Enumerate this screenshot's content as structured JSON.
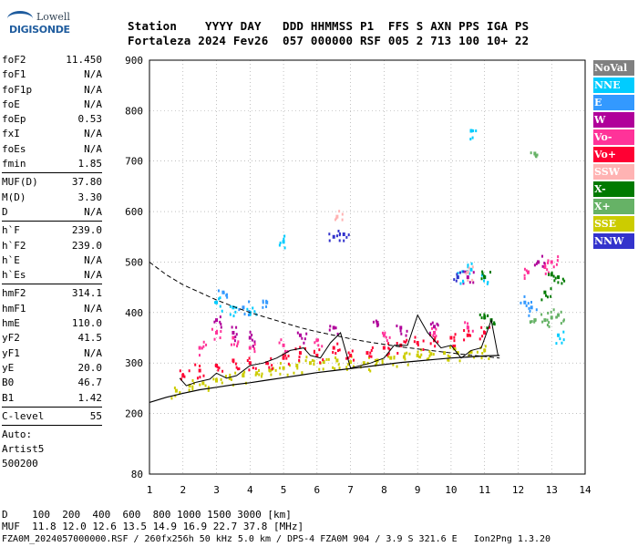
{
  "logo": {
    "line1": "Lowell",
    "line2": "DIGISONDE"
  },
  "header": {
    "line1": "Station    YYYY DAY   DDD HHMMSS P1  FFS S AXN PPS IGA PS",
    "line2": "Fortaleza 2024 Fev26  057 000000 RSF 005 2 713 100 10+ 22"
  },
  "params_group1": [
    {
      "label": "foF2",
      "value": "11.450"
    },
    {
      "label": "foF1",
      "value": "N/A"
    },
    {
      "label": "foF1p",
      "value": "N/A"
    },
    {
      "label": "foE",
      "value": "N/A"
    },
    {
      "label": "foEp",
      "value": "0.53"
    },
    {
      "label": "fxI",
      "value": "N/A"
    },
    {
      "label": "foEs",
      "value": "N/A"
    },
    {
      "label": "fmin",
      "value": "1.85"
    }
  ],
  "params_group2": [
    {
      "label": "MUF(D)",
      "value": "37.80"
    },
    {
      "label": "M(D)",
      "value": "3.30"
    },
    {
      "label": "D",
      "value": "N/A"
    }
  ],
  "params_group3": [
    {
      "label": "h`F",
      "value": "239.0"
    },
    {
      "label": "h`F2",
      "value": "239.0"
    },
    {
      "label": "h`E",
      "value": "N/A"
    },
    {
      "label": "h`Es",
      "value": "N/A"
    }
  ],
  "params_group4": [
    {
      "label": "hmF2",
      "value": "314.1"
    },
    {
      "label": "hmF1",
      "value": "N/A"
    },
    {
      "label": "hmE",
      "value": "110.0"
    },
    {
      "label": "yF2",
      "value": "41.5"
    },
    {
      "label": "yF1",
      "value": "N/A"
    },
    {
      "label": "yE",
      "value": "20.0"
    },
    {
      "label": "B0",
      "value": "46.7"
    },
    {
      "label": "B1",
      "value": "1.42"
    }
  ],
  "params_group5": [
    {
      "label": "C-level",
      "value": "55"
    }
  ],
  "auto": [
    "Auto:",
    "Artist5",
    "500200"
  ],
  "legend": [
    {
      "label": "NoVal",
      "color": "#808080"
    },
    {
      "label": "NNE",
      "color": "#00ccff"
    },
    {
      "label": "E",
      "color": "#3399ff"
    },
    {
      "label": "W",
      "color": "#b0009a"
    },
    {
      "label": "Vo-",
      "color": "#ff3399"
    },
    {
      "label": "Vo+",
      "color": "#ff0033"
    },
    {
      "label": "SSW",
      "color": "#ffb3b3"
    },
    {
      "label": "X-",
      "color": "#007a00"
    },
    {
      "label": "X+",
      "color": "#66b266"
    },
    {
      "label": "SSE",
      "color": "#cccc00"
    },
    {
      "label": "NNW",
      "color": "#3333cc"
    }
  ],
  "footer": {
    "line1": "D    100  200  400  600  800 1000 1500 3000 [km]",
    "line2": "MUF  11.8 12.0 12.6 13.5 14.9 16.9 22.7 37.8 [MHz]",
    "line3": "FZA0M_2024057000000.RSF / 260fx256h 50 kHz 5.0 km / DPS-4 FZA0M 904 / 3.9 S 321.6 E   Ion2Png 1.3.20"
  },
  "chart_data": {
    "type": "scatter",
    "title": "",
    "xlabel": "",
    "ylabel": "",
    "xlim": [
      1,
      14
    ],
    "ylim": [
      80,
      900
    ],
    "x_ticks": [
      1,
      2,
      3,
      4,
      5,
      6,
      7,
      8,
      9,
      10,
      11,
      12,
      13,
      14
    ],
    "y_ticks": [
      80,
      200,
      300,
      400,
      500,
      600,
      700,
      800,
      900
    ],
    "grid": "dotted",
    "legend_position": "right",
    "echo_traces": [
      {
        "series": "SSE",
        "points": [
          [
            1.8,
            245
          ],
          [
            2.2,
            255
          ],
          [
            2.6,
            260
          ],
          [
            3.0,
            265
          ],
          [
            3.4,
            270
          ],
          [
            3.8,
            275
          ],
          [
            4.2,
            280
          ],
          [
            4.6,
            285
          ],
          [
            5.0,
            290
          ],
          [
            5.4,
            295
          ],
          [
            5.8,
            300
          ],
          [
            6.2,
            302
          ],
          [
            6.6,
            305
          ],
          [
            7.0,
            302
          ],
          [
            7.4,
            300
          ],
          [
            7.8,
            305
          ],
          [
            8.2,
            310
          ],
          [
            8.6,
            312
          ],
          [
            9.0,
            315
          ],
          [
            9.4,
            318
          ],
          [
            9.8,
            320
          ],
          [
            10.2,
            320
          ],
          [
            10.6,
            322
          ],
          [
            11.0,
            325
          ]
        ]
      },
      {
        "series": "Vo+",
        "points": [
          [
            2.0,
            275
          ],
          [
            2.5,
            285
          ],
          [
            3.0,
            295
          ],
          [
            3.5,
            305
          ],
          [
            4.0,
            300
          ],
          [
            4.5,
            300
          ],
          [
            5.0,
            310
          ],
          [
            5.5,
            320
          ],
          [
            6.0,
            315
          ],
          [
            6.5,
            330
          ],
          [
            7.0,
            315
          ],
          [
            7.5,
            320
          ],
          [
            8.0,
            330
          ],
          [
            8.5,
            335
          ],
          [
            9.0,
            340
          ],
          [
            9.5,
            345
          ],
          [
            10.0,
            350
          ],
          [
            10.5,
            355
          ],
          [
            11.0,
            360
          ]
        ]
      },
      {
        "series": "Vo-",
        "points": [
          [
            2.5,
            330
          ],
          [
            3.0,
            360
          ],
          [
            3.5,
            350
          ],
          [
            4.0,
            330
          ],
          [
            5.0,
            335
          ],
          [
            6.0,
            345
          ],
          [
            8.0,
            355
          ],
          [
            9.5,
            360
          ],
          [
            10.5,
            370
          ],
          [
            12.3,
            480
          ],
          [
            12.8,
            490
          ],
          [
            13.0,
            500
          ]
        ]
      },
      {
        "series": "W",
        "points": [
          [
            3.0,
            385
          ],
          [
            3.5,
            360
          ],
          [
            4.0,
            350
          ],
          [
            5.5,
            355
          ],
          [
            6.5,
            370
          ],
          [
            7.8,
            380
          ],
          [
            8.5,
            370
          ],
          [
            9.5,
            372
          ],
          [
            10.5,
            470
          ],
          [
            12.6,
            500
          ]
        ]
      },
      {
        "series": "NNE",
        "points": [
          [
            3.0,
            420
          ],
          [
            3.5,
            410
          ],
          [
            4.0,
            400
          ],
          [
            5.0,
            540
          ],
          [
            10.2,
            470
          ],
          [
            10.6,
            485
          ],
          [
            11.0,
            470
          ],
          [
            10.6,
            760
          ],
          [
            13.2,
            355
          ]
        ]
      },
      {
        "series": "E",
        "points": [
          [
            3.2,
            440
          ],
          [
            3.8,
            410
          ],
          [
            4.5,
            420
          ],
          [
            12.2,
            420
          ],
          [
            12.4,
            410
          ]
        ]
      },
      {
        "series": "X-",
        "points": [
          [
            11.0,
            390
          ],
          [
            11.2,
            385
          ],
          [
            11.0,
            470
          ],
          [
            12.8,
            440
          ],
          [
            13.0,
            475
          ],
          [
            13.2,
            470
          ]
        ]
      },
      {
        "series": "X+",
        "points": [
          [
            12.5,
            385
          ],
          [
            12.8,
            385
          ],
          [
            13.0,
            390
          ],
          [
            13.2,
            395
          ],
          [
            12.5,
            715
          ]
        ]
      },
      {
        "series": "NNW",
        "points": [
          [
            6.5,
            550
          ],
          [
            6.8,
            555
          ],
          [
            10.2,
            470
          ]
        ]
      },
      {
        "series": "SSW",
        "points": [
          [
            6.6,
            590
          ],
          [
            10.5,
            480
          ]
        ]
      }
    ],
    "scaled_trace": [
      [
        1.9,
        270
      ],
      [
        2.1,
        255
      ],
      [
        2.4,
        262
      ],
      [
        2.8,
        268
      ],
      [
        3.0,
        280
      ],
      [
        3.3,
        270
      ],
      [
        3.6,
        275
      ],
      [
        4.0,
        295
      ],
      [
        4.4,
        300
      ],
      [
        4.8,
        310
      ],
      [
        5.2,
        325
      ],
      [
        5.6,
        330
      ],
      [
        5.8,
        315
      ],
      [
        6.1,
        310
      ],
      [
        6.4,
        340
      ],
      [
        6.7,
        360
      ],
      [
        7.0,
        290
      ],
      [
        7.3,
        295
      ],
      [
        7.6,
        300
      ],
      [
        8.0,
        310
      ],
      [
        8.3,
        335
      ],
      [
        8.7,
        335
      ],
      [
        9.0,
        395
      ],
      [
        9.3,
        360
      ],
      [
        9.7,
        330
      ],
      [
        10.0,
        335
      ],
      [
        10.3,
        310
      ],
      [
        10.6,
        325
      ],
      [
        10.9,
        330
      ],
      [
        11.2,
        385
      ],
      [
        11.4,
        315
      ]
    ],
    "profile_upper": [
      [
        1.0,
        500
      ],
      [
        1.5,
        475
      ],
      [
        2.0,
        455
      ],
      [
        2.5,
        440
      ],
      [
        3.0,
        425
      ],
      [
        3.5,
        412
      ],
      [
        4.0,
        400
      ],
      [
        4.5,
        390
      ],
      [
        5.0,
        380
      ],
      [
        5.5,
        370
      ],
      [
        6.0,
        362
      ],
      [
        6.5,
        355
      ],
      [
        7.0,
        348
      ],
      [
        7.5,
        342
      ],
      [
        8.0,
        337
      ],
      [
        8.5,
        332
      ],
      [
        9.0,
        328
      ],
      [
        9.5,
        324
      ],
      [
        10.0,
        320
      ],
      [
        10.5,
        316
      ],
      [
        11.0,
        313
      ],
      [
        11.45,
        310
      ]
    ],
    "profile_lower": [
      [
        1.0,
        222
      ],
      [
        1.5,
        232
      ],
      [
        2.0,
        240
      ],
      [
        2.5,
        247
      ],
      [
        3.0,
        252
      ],
      [
        3.5,
        257
      ],
      [
        4.0,
        261
      ],
      [
        4.5,
        266
      ],
      [
        5.0,
        271
      ],
      [
        5.5,
        276
      ],
      [
        6.0,
        281
      ],
      [
        6.5,
        285
      ],
      [
        7.0,
        289
      ],
      [
        7.5,
        293
      ],
      [
        8.0,
        297
      ],
      [
        8.5,
        301
      ],
      [
        9.0,
        304
      ],
      [
        9.5,
        307
      ],
      [
        10.0,
        310
      ],
      [
        10.5,
        312
      ],
      [
        11.0,
        314
      ],
      [
        11.45,
        315
      ]
    ]
  }
}
